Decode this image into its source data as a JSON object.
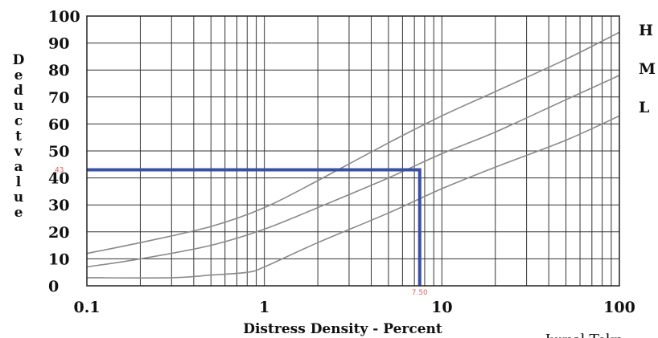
{
  "chart_data": {
    "type": "line",
    "x_scale": "log",
    "xlim": [
      0.1,
      100
    ],
    "ylim": [
      0,
      100
    ],
    "grid": true,
    "xlabel": "Distress Density - Percent",
    "ylabel": "Deduct value",
    "x_ticks": [
      "0.1",
      "1",
      "10",
      "100"
    ],
    "y_ticks": [
      "0",
      "10",
      "20",
      "30",
      "40",
      "50",
      "60",
      "70",
      "80",
      "90",
      "100"
    ],
    "series": [
      {
        "name": "H",
        "x": [
          0.1,
          0.2,
          0.5,
          1,
          2,
          5,
          10,
          20,
          50,
          100
        ],
        "y": [
          12,
          16,
          22,
          29,
          39,
          53,
          63,
          72,
          84,
          94
        ]
      },
      {
        "name": "M",
        "x": [
          0.1,
          0.2,
          0.5,
          1,
          2,
          5,
          10,
          20,
          50,
          100
        ],
        "y": [
          7,
          10,
          15,
          21,
          29,
          40,
          49,
          57,
          69,
          78
        ]
      },
      {
        "name": "L",
        "x": [
          0.1,
          0.3,
          0.5,
          0.8,
          1,
          2,
          5,
          10,
          20,
          50,
          100
        ],
        "y": [
          3,
          3,
          4,
          5,
          7,
          16,
          27,
          36,
          44,
          54,
          63
        ]
      }
    ],
    "annotation": {
      "x": 7.5,
      "y": 43,
      "x_label": "7.50",
      "y_label": "43",
      "color": "#3b4fa8"
    }
  },
  "source_text": "Jurnal Tekn"
}
